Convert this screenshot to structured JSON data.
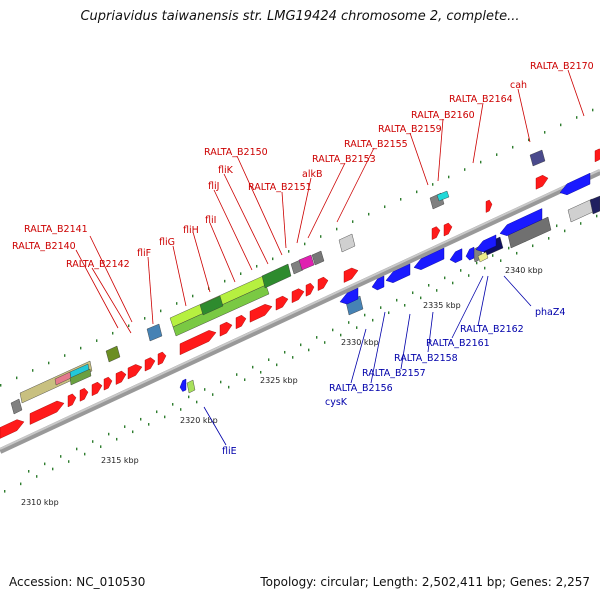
{
  "title": "Cupriavidus taiwanensis str. LMG19424 chromosome 2, complete...",
  "footer": {
    "accession": "Accession: NC_010530",
    "summary": "Topology: circular; Length: 2,502,411 bp; Genes: 2,257"
  },
  "colors": {
    "forward_gene": "#ff1a1a",
    "reverse_gene": "#1a1aff",
    "forward_label": "#cc0000",
    "reverse_label": "#0000aa",
    "backbone": "#999999",
    "tick": "#2e7d2e"
  },
  "scale": [
    "2310 kbp",
    "2315 kbp",
    "2320 kbp",
    "2325 kbp",
    "2330 kbp",
    "2335 kbp",
    "2340 kbp"
  ],
  "forward_labels": [
    "RALTA_B2141",
    "RALTA_B2140",
    "RALTA_B2142",
    "fliF",
    "fliG",
    "fliH",
    "fliI",
    "fliJ",
    "fliK",
    "RALTA_B2150",
    "RALTA_B2151",
    "alkB",
    "RALTA_B2153",
    "RALTA_B2155",
    "RALTA_B2159",
    "RALTA_B2160",
    "RALTA_B2164",
    "cah",
    "RALTA_B2170"
  ],
  "reverse_labels": [
    "fliE",
    "cysK",
    "RALTA_B2156",
    "RALTA_B2157",
    "RALTA_B2158",
    "RALTA_B2161",
    "RALTA_B2162",
    "phaZ4"
  ]
}
